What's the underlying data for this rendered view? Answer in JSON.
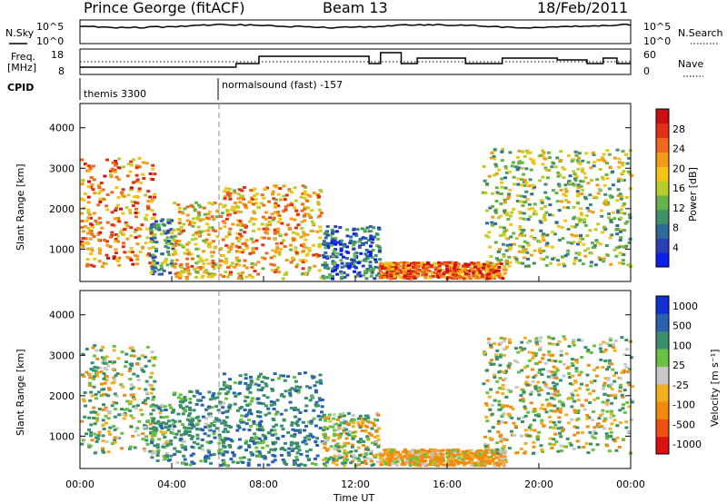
{
  "header": {
    "station": "Prince George (fitACF)",
    "beam": "Beam 13",
    "date": "18/Feb/2011"
  },
  "nsky_panel": {
    "left_label": "N.Sky",
    "right_label": "N.Search",
    "left_ticks": [
      "10^5",
      "10^0"
    ],
    "right_ticks": [
      "10^5",
      "10^0"
    ]
  },
  "freq_panel": {
    "left_label_1": "Freq.",
    "left_label_2": "[MHz]",
    "left_ticks": [
      "18",
      "8"
    ],
    "right_label": "Nave",
    "right_ticks": [
      "60",
      "0"
    ]
  },
  "cpid_panel": {
    "label": "CPID",
    "modes": [
      {
        "name": "themis 3300",
        "start_hour": 0
      },
      {
        "name": "normalsound (fast) -157",
        "start_hour": 6
      }
    ]
  },
  "chart_data": [
    {
      "type": "heatmap",
      "name": "power",
      "x_range_hours": [
        0,
        24
      ],
      "xlabel": "Time UT",
      "x_ticks": [
        "00:00",
        "04:00",
        "08:00",
        "12:00",
        "16:00",
        "20:00",
        "00:00"
      ],
      "ylabel": "Slant Range [km]",
      "y_ticks": [
        1000,
        2000,
        3000,
        4000
      ],
      "ylim": [
        200,
        4600
      ],
      "colorbar": {
        "label": "Power [dB]",
        "ticks": [
          "4",
          "8",
          "12",
          "16",
          "20",
          "24",
          "28"
        ],
        "colors": [
          "#0a1fe8",
          "#2a3fb8",
          "#2e6b9a",
          "#3f8f6a",
          "#66b24a",
          "#b8cc2e",
          "#f2c418",
          "#f39a1a",
          "#ee6a1a",
          "#e23018",
          "#cc1010"
        ]
      }
    },
    {
      "type": "heatmap",
      "name": "velocity",
      "x_range_hours": [
        0,
        24
      ],
      "xlabel": "Time UT",
      "x_ticks": [
        "00:00",
        "04:00",
        "08:00",
        "12:00",
        "16:00",
        "20:00",
        "00:00"
      ],
      "ylabel": "Slant Range [km]",
      "y_ticks": [
        1000,
        2000,
        3000,
        4000
      ],
      "ylim": [
        200,
        4600
      ],
      "colorbar": {
        "label": "Velocity [m s⁻¹]",
        "ticks": [
          "1000",
          "500",
          "100",
          "25",
          "-25",
          "-100",
          "-500",
          "-1000"
        ],
        "colors": [
          "#1030d0",
          "#2a60b0",
          "#3a8f6a",
          "#6ac040",
          "#c8c8c8",
          "#f2b020",
          "#f28a10",
          "#ee5010",
          "#dd1010"
        ]
      }
    }
  ],
  "echo_regions": [
    {
      "t": [
        0.0,
        3.2
      ],
      "r": [
        600,
        3300
      ],
      "pow": 22,
      "vel": 60
    },
    {
      "t": [
        3.0,
        4.0
      ],
      "r": [
        400,
        1800
      ],
      "pow": 10,
      "vel": 150
    },
    {
      "t": [
        4.0,
        6.2
      ],
      "r": [
        300,
        2200
      ],
      "pow": 18,
      "vel": 200
    },
    {
      "t": [
        6.2,
        10.5
      ],
      "r": [
        300,
        2600
      ],
      "pow": 20,
      "vel": 250
    },
    {
      "t": [
        10.5,
        13.0
      ],
      "r": [
        300,
        1600
      ],
      "pow": 6,
      "vel": 0
    },
    {
      "t": [
        13.0,
        18.5
      ],
      "r": [
        300,
        700
      ],
      "pow": 24,
      "vel": -120
    },
    {
      "t": [
        17.5,
        24.0
      ],
      "r": [
        600,
        3500
      ],
      "pow": 14,
      "vel": 20
    }
  ]
}
